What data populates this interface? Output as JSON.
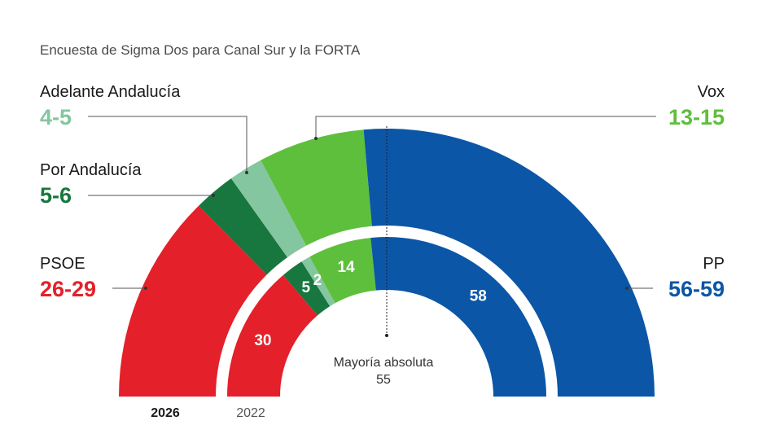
{
  "subtitle": "Encuesta de Sigma Dos para Canal Sur y la FORTA",
  "chart_data": {
    "type": "semicircle-parliament",
    "total_seats": 109,
    "majority": {
      "label": "Mayoría absoluta",
      "value": "55"
    },
    "rings": [
      {
        "year": "2026",
        "series": [
          {
            "party": "PSOE",
            "range": "26-29",
            "value": 27.5,
            "color": "#e4202a"
          },
          {
            "party": "Por Andalucía",
            "range": "5-6",
            "value": 5.5,
            "color": "#17773e"
          },
          {
            "party": "Adelante Andalucía",
            "range": "4-5",
            "value": 4.5,
            "color": "#84c69f"
          },
          {
            "party": "Vox",
            "range": "13-15",
            "value": 14,
            "color": "#5ebf3d"
          },
          {
            "party": "PP",
            "range": "56-59",
            "value": 57.5,
            "color": "#0b56a6"
          }
        ]
      },
      {
        "year": "2022",
        "series": [
          {
            "party": "PSOE",
            "value": 30,
            "label": "30",
            "color": "#e4202a"
          },
          {
            "party": "Por Andalucía",
            "value": 5,
            "label": "5",
            "color": "#17773e"
          },
          {
            "party": "Adelante Andalucía",
            "value": 2,
            "label": "2",
            "color": "#84c69f"
          },
          {
            "party": "Vox",
            "value": 14,
            "label": "14",
            "color": "#5ebf3d"
          },
          {
            "party": "PP",
            "value": 58,
            "label": "58",
            "color": "#0b56a6"
          }
        ]
      }
    ]
  },
  "labels": {
    "adelante": {
      "name": "Adelante Andalucía",
      "range": "4-5",
      "color": "#84c69f"
    },
    "por_andalucia": {
      "name": "Por Andalucía",
      "range": "5-6",
      "color": "#17773e"
    },
    "psoe": {
      "name": "PSOE",
      "range": "26-29",
      "color": "#e4202a"
    },
    "vox": {
      "name": "Vox",
      "range": "13-15",
      "color": "#5ebf3d"
    },
    "pp": {
      "name": "PP",
      "range": "56-59",
      "color": "#0b56a6"
    }
  },
  "years": {
    "outer": "2026",
    "inner": "2022"
  }
}
